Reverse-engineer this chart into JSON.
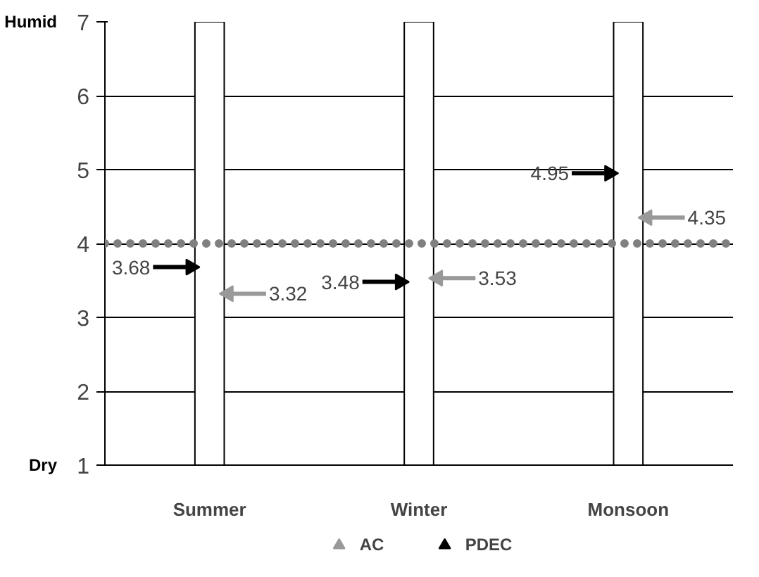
{
  "chart_data": {
    "type": "bar",
    "categories": [
      "Summer",
      "Winter",
      "Monsoon"
    ],
    "base": [
      1,
      1,
      1
    ],
    "values": [
      6,
      6,
      6
    ],
    "color": "#ffffff",
    "ylim": [
      1,
      7
    ],
    "yticks": [
      1,
      2,
      3,
      4,
      5,
      6,
      7
    ],
    "grid": "y",
    "legend": "bottom",
    "series": [
      {
        "name": "AC",
        "type": "scatter",
        "color": "#999999",
        "marker": "triangle",
        "values": [
          3.32,
          3.53,
          4.35
        ],
        "value_labels": [
          "3.32",
          "3.53",
          "4.35"
        ]
      },
      {
        "name": "PDEC",
        "type": "scatter",
        "color": "#000000",
        "marker": "triangle",
        "values": [
          3.68,
          3.48,
          4.95
        ],
        "value_labels": [
          "3.68",
          "3.48",
          "4.95"
        ]
      }
    ],
    "ref_lines": [
      {
        "axis": "y",
        "value": 4,
        "color": "#808080",
        "line_style": "dotted"
      }
    ],
    "annotations": [
      "Humid",
      "Dry"
    ]
  }
}
